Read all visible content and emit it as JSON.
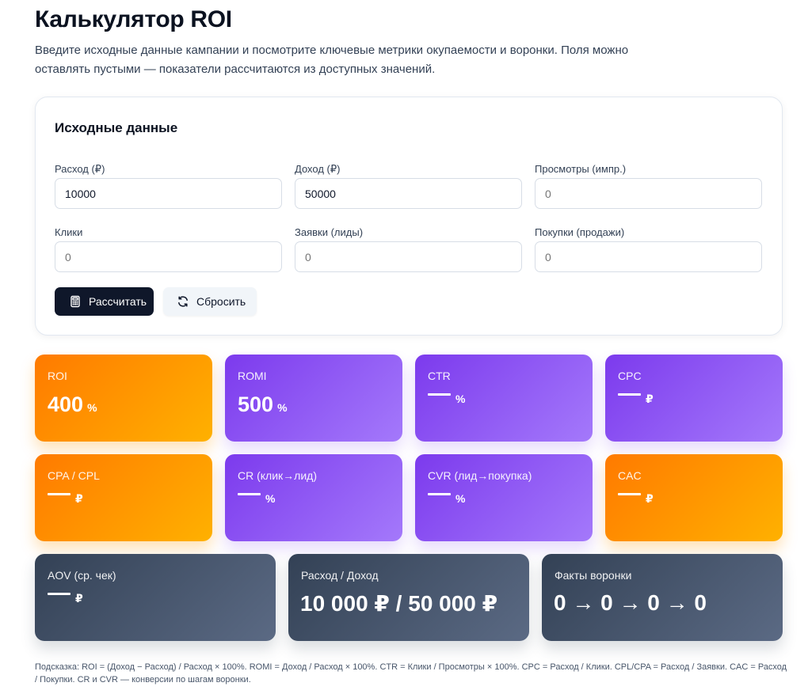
{
  "header": {
    "title": "Калькулятор ROI",
    "subtitle": "Введите исходные данные кампании и посмотрите ключевые метрики окупаемости и воронки. Поля можно оставлять пустыми — показатели рассчитаются из доступных значений."
  },
  "inputs": {
    "section_title": "Исходные данные",
    "fields": [
      {
        "label": "Расход (₽)",
        "value": "10000",
        "placeholder": "0"
      },
      {
        "label": "Доход (₽)",
        "value": "50000",
        "placeholder": "0"
      },
      {
        "label": "Просмотры (импр.)",
        "value": "",
        "placeholder": "0"
      },
      {
        "label": "Клики",
        "value": "",
        "placeholder": "0"
      },
      {
        "label": "Заявки (лиды)",
        "value": "",
        "placeholder": "0"
      },
      {
        "label": "Покупки (продажи)",
        "value": "",
        "placeholder": "0"
      }
    ],
    "calculate_label": "Рассчитать",
    "reset_label": "Сбросить",
    "calculate_icon": "calculator-icon",
    "reset_icon": "refresh-icon"
  },
  "metrics": [
    {
      "label": "ROI",
      "value": "400",
      "unit": "%"
    },
    {
      "label": "ROMI",
      "value": "500",
      "unit": "%"
    },
    {
      "label": "CTR",
      "value": "",
      "unit": "%"
    },
    {
      "label": "CPC",
      "value": "",
      "unit": "₽"
    },
    {
      "label": "CPA / CPL",
      "value": "",
      "unit": "₽"
    },
    {
      "label": "CR (клик→лид)",
      "value": "",
      "unit": "%"
    },
    {
      "label": "CVR (лид→покупка)",
      "value": "",
      "unit": "%"
    },
    {
      "label": "CAC",
      "value": "",
      "unit": "₽"
    },
    {
      "label": "AOV (ср. чек)",
      "value": "",
      "unit": "₽"
    },
    {
      "label": "Расход / Доход",
      "value": "10 000 ₽ / 50 000 ₽"
    },
    {
      "label": "Факты воронки",
      "value": "0 → 0 → 0 → 0"
    }
  ],
  "colors": {
    "orange_start": "#ff7a00",
    "orange_end": "#ffb100",
    "purple_start": "#7c3aed",
    "purple_end": "#a479fb",
    "slate_start": "#334155",
    "slate_end": "#5b6a84",
    "primary_button": "#0f172a"
  },
  "hint": "Подсказка: ROI = (Доход − Расход) / Расход × 100%. ROMI = Доход / Расход × 100%. CTR = Клики / Просмотры × 100%. CPC = Расход / Клики. CPL/CPA = Расход / Заявки. CAC = Расход / Покупки. CR и CVR — конверсии по шагам воронки."
}
